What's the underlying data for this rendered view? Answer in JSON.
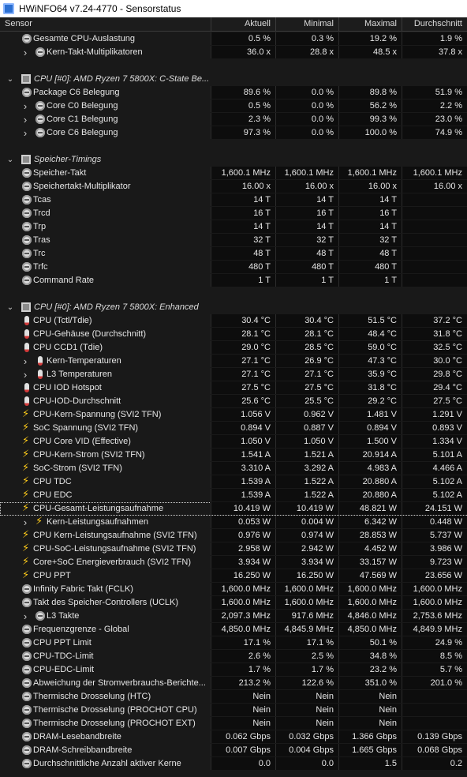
{
  "window": {
    "title": "HWiNFO64 v7.24-4770 - Sensorstatus"
  },
  "columns": {
    "sensor": "Sensor",
    "current": "Aktuell",
    "min": "Minimal",
    "max": "Maximal",
    "avg": "Durchschnitt"
  },
  "rows": [
    {
      "type": "item",
      "indent": 1,
      "icon": "circle",
      "label": "Gesamte CPU-Auslastung",
      "vals": [
        "0.5 %",
        "0.3 %",
        "19.2 %",
        "1.9 %"
      ]
    },
    {
      "type": "item",
      "indent": 2,
      "expand": true,
      "icon": "circle",
      "label": "Kern-Takt-Multiplikatoren",
      "vals": [
        "36.0 x",
        "28.8 x",
        "48.5 x",
        "37.8 x"
      ]
    },
    {
      "type": "blank"
    },
    {
      "type": "group",
      "label": "CPU [#0]: AMD Ryzen 7 5800X: C-State Be..."
    },
    {
      "type": "item",
      "indent": 1,
      "icon": "circle",
      "label": "Package C6 Belegung",
      "vals": [
        "89.6 %",
        "0.0 %",
        "89.8 %",
        "51.9 %"
      ]
    },
    {
      "type": "item",
      "indent": 2,
      "expand": true,
      "icon": "circle",
      "label": "Core C0 Belegung",
      "vals": [
        "0.5 %",
        "0.0 %",
        "56.2 %",
        "2.2 %"
      ]
    },
    {
      "type": "item",
      "indent": 2,
      "expand": true,
      "icon": "circle",
      "label": "Core C1 Belegung",
      "vals": [
        "2.3 %",
        "0.0 %",
        "99.3 %",
        "23.0 %"
      ]
    },
    {
      "type": "item",
      "indent": 2,
      "expand": true,
      "icon": "circle",
      "label": "Core C6 Belegung",
      "vals": [
        "97.3 %",
        "0.0 %",
        "100.0 %",
        "74.9 %"
      ]
    },
    {
      "type": "blank"
    },
    {
      "type": "group",
      "label": "Speicher-Timings"
    },
    {
      "type": "item",
      "indent": 1,
      "icon": "circle",
      "label": "Speicher-Takt",
      "vals": [
        "1,600.1 MHz",
        "1,600.1 MHz",
        "1,600.1 MHz",
        "1,600.1 MHz"
      ]
    },
    {
      "type": "item",
      "indent": 1,
      "icon": "circle",
      "label": "Speichertakt-Multiplikator",
      "vals": [
        "16.00 x",
        "16.00 x",
        "16.00 x",
        "16.00 x"
      ]
    },
    {
      "type": "item",
      "indent": 1,
      "icon": "circle",
      "label": "Tcas",
      "vals": [
        "14 T",
        "14 T",
        "14 T",
        ""
      ]
    },
    {
      "type": "item",
      "indent": 1,
      "icon": "circle",
      "label": "Trcd",
      "vals": [
        "16 T",
        "16 T",
        "16 T",
        ""
      ]
    },
    {
      "type": "item",
      "indent": 1,
      "icon": "circle",
      "label": "Trp",
      "vals": [
        "14 T",
        "14 T",
        "14 T",
        ""
      ]
    },
    {
      "type": "item",
      "indent": 1,
      "icon": "circle",
      "label": "Tras",
      "vals": [
        "32 T",
        "32 T",
        "32 T",
        ""
      ]
    },
    {
      "type": "item",
      "indent": 1,
      "icon": "circle",
      "label": "Trc",
      "vals": [
        "48 T",
        "48 T",
        "48 T",
        ""
      ]
    },
    {
      "type": "item",
      "indent": 1,
      "icon": "circle",
      "label": "Trfc",
      "vals": [
        "480 T",
        "480 T",
        "480 T",
        ""
      ]
    },
    {
      "type": "item",
      "indent": 1,
      "icon": "circle",
      "label": "Command Rate",
      "vals": [
        "1 T",
        "1 T",
        "1 T",
        ""
      ]
    },
    {
      "type": "blank"
    },
    {
      "type": "group",
      "label": "CPU [#0]: AMD Ryzen 7 5800X: Enhanced"
    },
    {
      "type": "item",
      "indent": 1,
      "icon": "therm",
      "label": "CPU (Tctl/Tdie)",
      "vals": [
        "30.4 °C",
        "30.4 °C",
        "51.5 °C",
        "37.2 °C"
      ]
    },
    {
      "type": "item",
      "indent": 1,
      "icon": "therm",
      "label": "CPU-Gehäuse (Durchschnitt)",
      "vals": [
        "28.1 °C",
        "28.1 °C",
        "48.4 °C",
        "31.8 °C"
      ]
    },
    {
      "type": "item",
      "indent": 1,
      "icon": "therm",
      "label": "CPU CCD1 (Tdie)",
      "vals": [
        "29.0 °C",
        "28.5 °C",
        "59.0 °C",
        "32.5 °C"
      ]
    },
    {
      "type": "item",
      "indent": 2,
      "expand": true,
      "icon": "therm",
      "label": "Kern-Temperaturen",
      "vals": [
        "27.1 °C",
        "26.9 °C",
        "47.3 °C",
        "30.0 °C"
      ]
    },
    {
      "type": "item",
      "indent": 2,
      "expand": true,
      "icon": "therm",
      "label": "L3 Temperaturen",
      "vals": [
        "27.1 °C",
        "27.1 °C",
        "35.9 °C",
        "29.8 °C"
      ]
    },
    {
      "type": "item",
      "indent": 1,
      "icon": "therm",
      "label": "CPU IOD Hotspot",
      "vals": [
        "27.5 °C",
        "27.5 °C",
        "31.8 °C",
        "29.4 °C"
      ]
    },
    {
      "type": "item",
      "indent": 1,
      "icon": "therm",
      "label": "CPU-IOD-Durchschnitt",
      "vals": [
        "25.6 °C",
        "25.5 °C",
        "29.2 °C",
        "27.5 °C"
      ]
    },
    {
      "type": "item",
      "indent": 1,
      "icon": "bolt",
      "label": "CPU-Kern-Spannung (SVI2 TFN)",
      "vals": [
        "1.056 V",
        "0.962 V",
        "1.481 V",
        "1.291 V"
      ]
    },
    {
      "type": "item",
      "indent": 1,
      "icon": "bolt",
      "label": "SoC Spannung (SVI2 TFN)",
      "vals": [
        "0.894 V",
        "0.887 V",
        "0.894 V",
        "0.893 V"
      ]
    },
    {
      "type": "item",
      "indent": 1,
      "icon": "bolt",
      "label": "CPU Core VID (Effective)",
      "vals": [
        "1.050 V",
        "1.050 V",
        "1.500 V",
        "1.334 V"
      ]
    },
    {
      "type": "item",
      "indent": 1,
      "icon": "bolt",
      "label": "CPU-Kern-Strom (SVI2 TFN)",
      "vals": [
        "1.541 A",
        "1.521 A",
        "20.914 A",
        "5.101 A"
      ]
    },
    {
      "type": "item",
      "indent": 1,
      "icon": "bolt",
      "label": "SoC-Strom (SVI2 TFN)",
      "vals": [
        "3.310 A",
        "3.292 A",
        "4.983 A",
        "4.466 A"
      ]
    },
    {
      "type": "item",
      "indent": 1,
      "icon": "bolt",
      "label": "CPU TDC",
      "vals": [
        "1.539 A",
        "1.522 A",
        "20.880 A",
        "5.102 A"
      ]
    },
    {
      "type": "item",
      "indent": 1,
      "icon": "bolt",
      "label": "CPU EDC",
      "vals": [
        "1.539 A",
        "1.522 A",
        "20.880 A",
        "5.102 A"
      ]
    },
    {
      "type": "item",
      "indent": 1,
      "icon": "bolt",
      "selected": true,
      "label": "CPU-Gesamt-Leistungsaufnahme",
      "vals": [
        "10.419 W",
        "10.419 W",
        "48.821 W",
        "24.151 W"
      ]
    },
    {
      "type": "item",
      "indent": 2,
      "expand": true,
      "icon": "bolt",
      "label": "Kern-Leistungsaufnahmen",
      "vals": [
        "0.053 W",
        "0.004 W",
        "6.342 W",
        "0.448 W"
      ]
    },
    {
      "type": "item",
      "indent": 1,
      "icon": "bolt",
      "label": "CPU Kern-Leistungsaufnahme (SVI2 TFN)",
      "vals": [
        "0.976 W",
        "0.974 W",
        "28.853 W",
        "5.737 W"
      ]
    },
    {
      "type": "item",
      "indent": 1,
      "icon": "bolt",
      "label": "CPU-SoC-Leistungsaufnahme (SVI2 TFN)",
      "vals": [
        "2.958 W",
        "2.942 W",
        "4.452 W",
        "3.986 W"
      ]
    },
    {
      "type": "item",
      "indent": 1,
      "icon": "bolt",
      "label": "Core+SoC Energieverbrauch (SVI2 TFN)",
      "vals": [
        "3.934 W",
        "3.934 W",
        "33.157 W",
        "9.723 W"
      ]
    },
    {
      "type": "item",
      "indent": 1,
      "icon": "bolt",
      "label": "CPU PPT",
      "vals": [
        "16.250 W",
        "16.250 W",
        "47.569 W",
        "23.656 W"
      ]
    },
    {
      "type": "item",
      "indent": 1,
      "icon": "circle",
      "label": "Infinity Fabric Takt (FCLK)",
      "vals": [
        "1,600.0 MHz",
        "1,600.0 MHz",
        "1,600.0 MHz",
        "1,600.0 MHz"
      ]
    },
    {
      "type": "item",
      "indent": 1,
      "icon": "circle",
      "label": "Takt des Speicher-Controllers (UCLK)",
      "vals": [
        "1,600.0 MHz",
        "1,600.0 MHz",
        "1,600.0 MHz",
        "1,600.0 MHz"
      ]
    },
    {
      "type": "item",
      "indent": 2,
      "expand": true,
      "icon": "circle",
      "label": "L3 Takte",
      "vals": [
        "2,097.3 MHz",
        "917.6 MHz",
        "4,846.0 MHz",
        "2,753.6 MHz"
      ]
    },
    {
      "type": "item",
      "indent": 1,
      "icon": "circle",
      "label": "Frequenzgrenze - Global",
      "vals": [
        "4,850.0 MHz",
        "4,845.9 MHz",
        "4,850.0 MHz",
        "4,849.9 MHz"
      ]
    },
    {
      "type": "item",
      "indent": 1,
      "icon": "circle",
      "label": "CPU PPT Limit",
      "vals": [
        "17.1 %",
        "17.1 %",
        "50.1 %",
        "24.9 %"
      ]
    },
    {
      "type": "item",
      "indent": 1,
      "icon": "circle",
      "label": "CPU-TDC-Limit",
      "vals": [
        "2.6 %",
        "2.5 %",
        "34.8 %",
        "8.5 %"
      ]
    },
    {
      "type": "item",
      "indent": 1,
      "icon": "circle",
      "label": "CPU-EDC-Limit",
      "vals": [
        "1.7 %",
        "1.7 %",
        "23.2 %",
        "5.7 %"
      ]
    },
    {
      "type": "item",
      "indent": 1,
      "icon": "circle",
      "label": "Abweichung der Stromverbrauchs-Berichte...",
      "vals": [
        "213.2 %",
        "122.6 %",
        "351.0 %",
        "201.0 %"
      ]
    },
    {
      "type": "item",
      "indent": 1,
      "icon": "circle",
      "label": "Thermische Drosselung (HTC)",
      "vals": [
        "Nein",
        "Nein",
        "Nein",
        ""
      ]
    },
    {
      "type": "item",
      "indent": 1,
      "icon": "circle",
      "label": "Thermische Drosselung (PROCHOT CPU)",
      "vals": [
        "Nein",
        "Nein",
        "Nein",
        ""
      ]
    },
    {
      "type": "item",
      "indent": 1,
      "icon": "circle",
      "label": "Thermische Drosselung (PROCHOT EXT)",
      "vals": [
        "Nein",
        "Nein",
        "Nein",
        ""
      ]
    },
    {
      "type": "item",
      "indent": 1,
      "icon": "circle",
      "label": "DRAM-Lesebandbreite",
      "vals": [
        "0.062 Gbps",
        "0.032 Gbps",
        "1.366 Gbps",
        "0.139 Gbps"
      ]
    },
    {
      "type": "item",
      "indent": 1,
      "icon": "circle",
      "label": "DRAM-Schreibbandbreite",
      "vals": [
        "0.007 Gbps",
        "0.004 Gbps",
        "1.665 Gbps",
        "0.068 Gbps"
      ]
    },
    {
      "type": "item",
      "indent": 1,
      "icon": "circle",
      "label": "Durchschnittliche Anzahl aktiver Kerne",
      "vals": [
        "0.0",
        "0.0",
        "1.5",
        "0.2"
      ]
    }
  ]
}
